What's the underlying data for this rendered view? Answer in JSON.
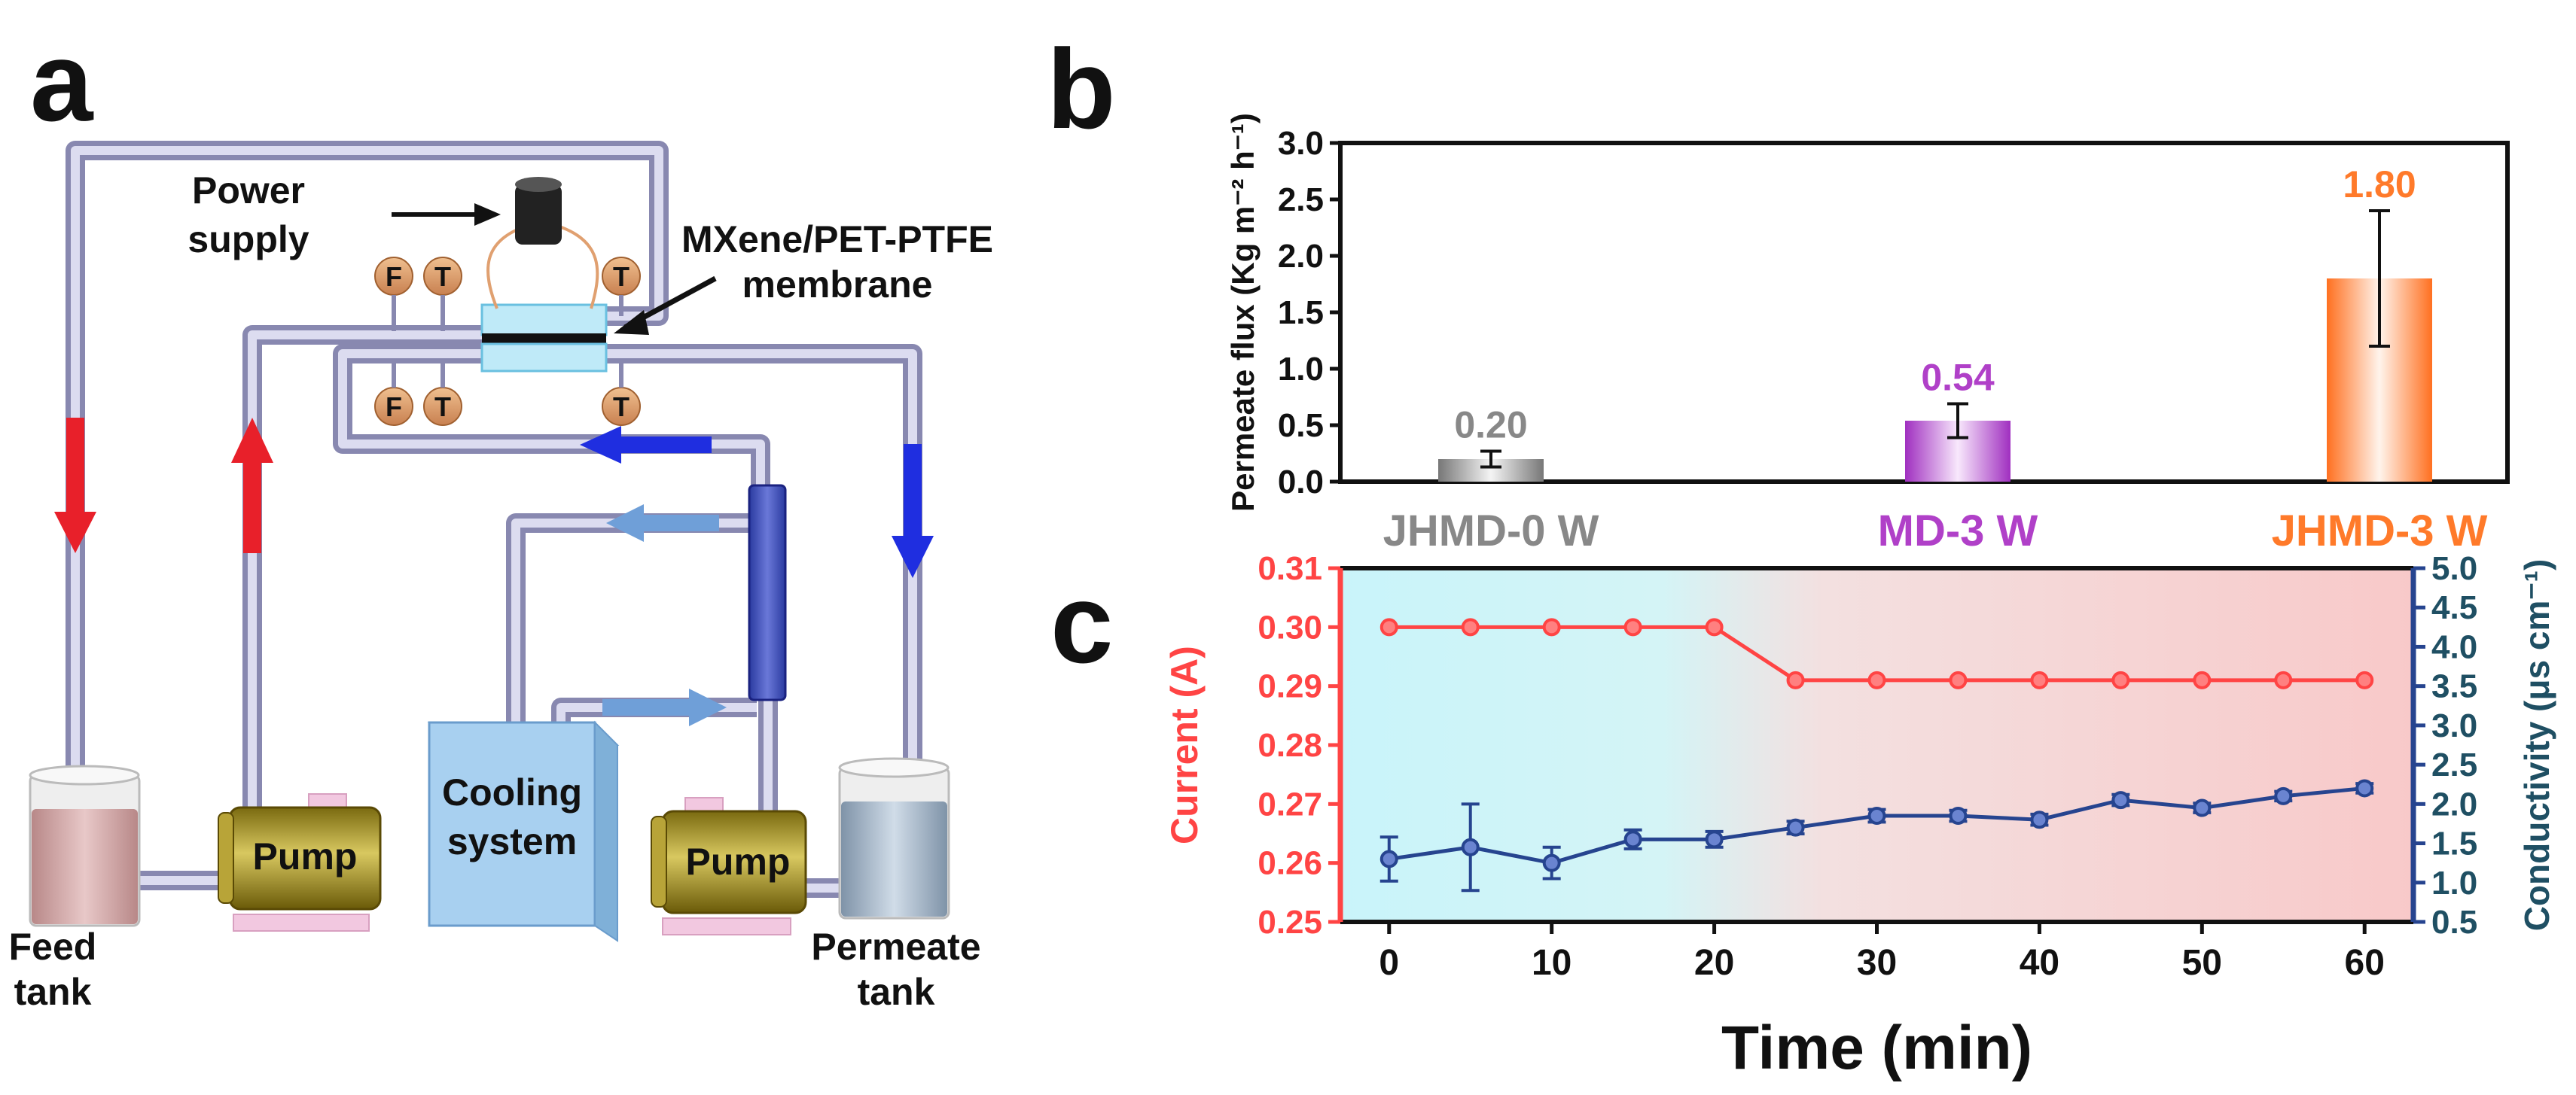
{
  "panels": [
    "a",
    "b",
    "c"
  ],
  "panel_a": {
    "labels": {
      "power_supply_line1": "Power",
      "power_supply_line2": "supply",
      "membrane_line1": "MXene/PET-PTFE",
      "membrane_line2": "membrane",
      "feed_tank_line1": "Feed",
      "feed_tank_line2": "tank",
      "permeate_tank_line1": "Permeate",
      "permeate_tank_line2": "tank",
      "cooling_line1": "Cooling",
      "cooling_line2": "system",
      "pump_left": "Pump",
      "pump_right": "Pump"
    },
    "sensors": [
      "F",
      "T",
      "T",
      "F",
      "T",
      "T"
    ],
    "colors": {
      "hot_arrow": "#e8202a",
      "cold_arrow": "#1f2ee0",
      "cool_arrow": "#6f9fd8",
      "pipe": "#b8b8d8",
      "sensor": "#e0a070",
      "pump": "#b09a2a",
      "cooler": "#a8d0f0",
      "feed_liquid": "#d8a8a8",
      "permeate_liquid": "#a8b8c8"
    }
  },
  "chart_data": [
    {
      "type": "bar",
      "panel": "b",
      "categories": [
        "JHMD-0 W",
        "MD-3 W",
        "JHMD-3 W"
      ],
      "values": [
        0.2,
        0.54,
        1.8
      ],
      "value_labels": [
        "0.20",
        "0.54",
        "1.80"
      ],
      "errors": [
        0.07,
        0.15,
        0.6
      ],
      "colors": [
        "#888888",
        "#b040c8",
        "#ff7a2a"
      ],
      "ylabel": "Permeate flux (Kg m⁻² h⁻¹)",
      "ylim": [
        0,
        3.0
      ],
      "yticks": [
        "0.0",
        "0.5",
        "1.0",
        "1.5",
        "2.0",
        "2.5",
        "3.0"
      ]
    },
    {
      "type": "line",
      "panel": "c",
      "x": [
        0,
        5,
        10,
        15,
        20,
        25,
        30,
        35,
        40,
        45,
        50,
        55,
        60
      ],
      "xlabel": "Time (min)",
      "xticks": [
        "0",
        "10",
        "20",
        "30",
        "40",
        "50",
        "60"
      ],
      "xlim": [
        -3,
        63
      ],
      "series": [
        {
          "axis": "left",
          "color": "#ff4444",
          "values": [
            0.3,
            0.3,
            0.3,
            0.3,
            0.3,
            0.291,
            0.291,
            0.291,
            0.291,
            0.291,
            0.291,
            0.291,
            0.291
          ]
        },
        {
          "axis": "right",
          "color": "#26448f",
          "values": [
            1.3,
            1.45,
            1.25,
            1.55,
            1.55,
            1.7,
            1.85,
            1.85,
            1.8,
            2.05,
            1.95,
            2.1,
            2.2
          ],
          "errors": [
            0.28,
            0.55,
            0.2,
            0.12,
            0.1,
            0.08,
            0.08,
            0.07,
            0.07,
            0.07,
            0.06,
            0.06,
            0.06
          ]
        }
      ],
      "ylabel_left": "Current (A)",
      "ylim_left": [
        0.25,
        0.31
      ],
      "yticks_left": [
        "0.25",
        "0.26",
        "0.27",
        "0.28",
        "0.29",
        "0.30",
        "0.31"
      ],
      "ylabel_right": "Conductivity (μs cm⁻¹)",
      "ylim_right": [
        0.5,
        5.0
      ],
      "yticks_right": [
        "0.5",
        "1.0",
        "1.5",
        "2.0",
        "2.5",
        "3.0",
        "3.5",
        "4.0",
        "4.5",
        "5.0"
      ]
    }
  ]
}
